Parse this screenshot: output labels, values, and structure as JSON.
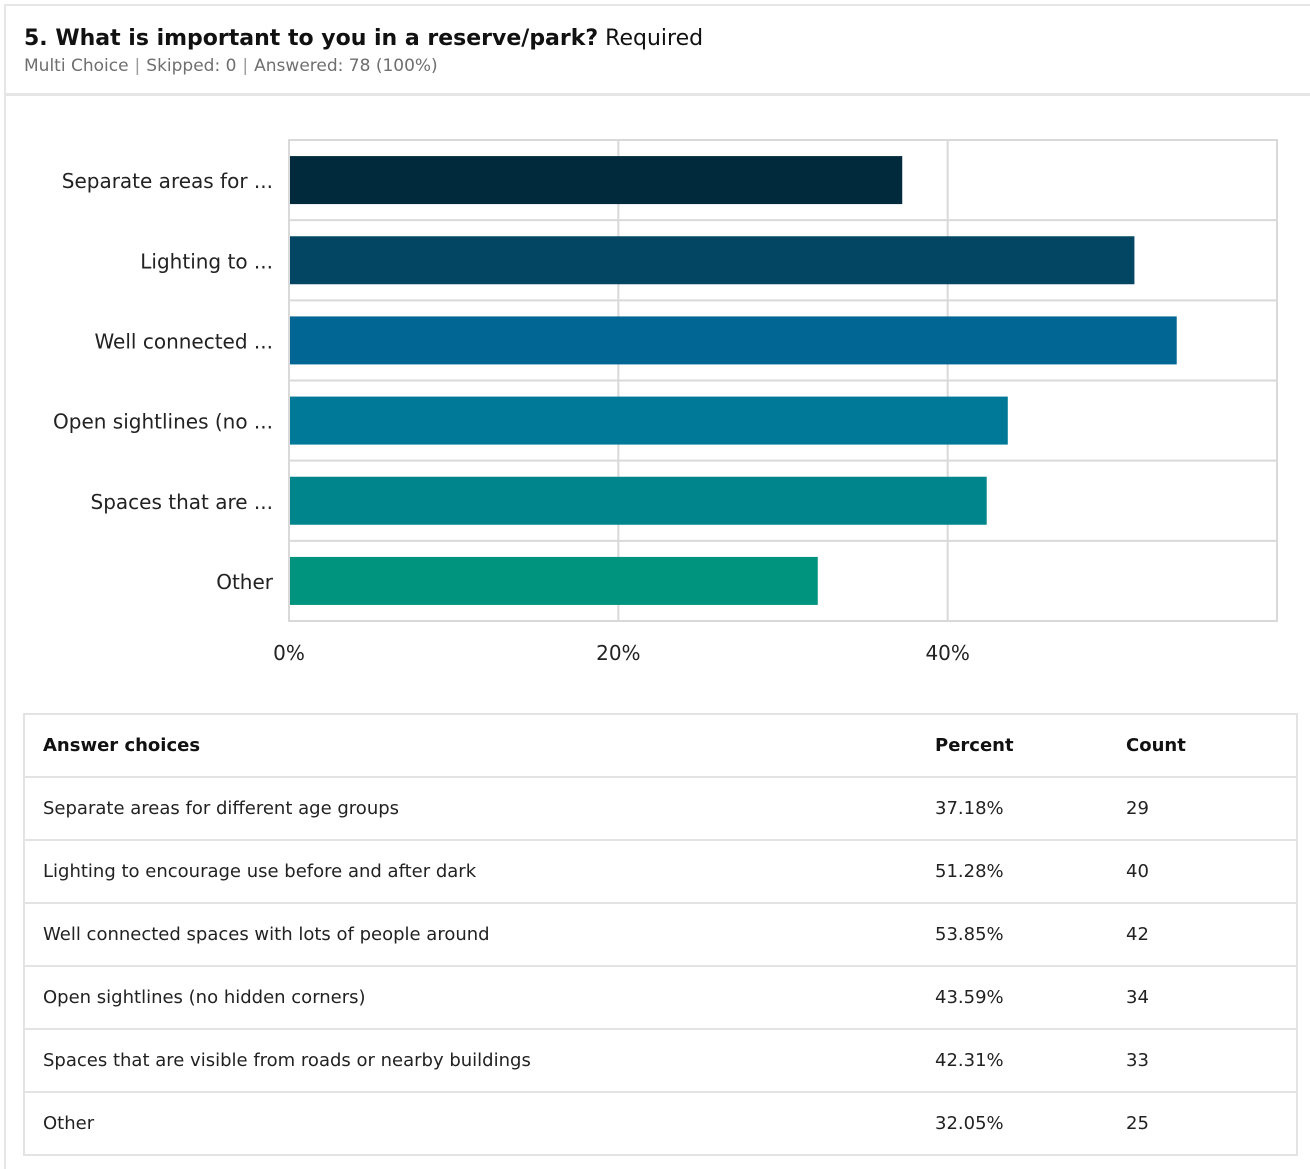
{
  "question": {
    "number_title": "5. What is important to you in a reserve/park?",
    "required": "Required",
    "type": "Multi Choice",
    "skipped": "Skipped: 0",
    "answered": "Answered: 78 (100%)"
  },
  "chart_data": {
    "type": "bar",
    "orientation": "horizontal",
    "categories": [
      "Separate areas for ...",
      "Lighting to ...",
      "Well connected ...",
      "Open sightlines (no ...",
      "Spaces that are ...",
      "Other"
    ],
    "values": [
      37.18,
      51.28,
      53.85,
      43.59,
      42.31,
      32.05
    ],
    "x_ticks": [
      "0%",
      "20%",
      "40%"
    ],
    "xlim": [
      0,
      60
    ],
    "grid": true,
    "colors": [
      "#012b3c",
      "#034663",
      "#026694",
      "#007898",
      "#00858d",
      "#00937d"
    ]
  },
  "table": {
    "headers": [
      "Answer choices",
      "Percent",
      "Count"
    ],
    "rows": [
      [
        "Separate areas for different age groups",
        "37.18%",
        "29"
      ],
      [
        "Lighting to encourage use before and after dark",
        "51.28%",
        "40"
      ],
      [
        "Well connected spaces with lots of people around",
        "53.85%",
        "42"
      ],
      [
        "Open sightlines (no hidden corners)",
        "43.59%",
        "34"
      ],
      [
        "Spaces that are visible from roads or nearby buildings",
        "42.31%",
        "33"
      ],
      [
        "Other",
        "32.05%",
        "25"
      ]
    ]
  }
}
